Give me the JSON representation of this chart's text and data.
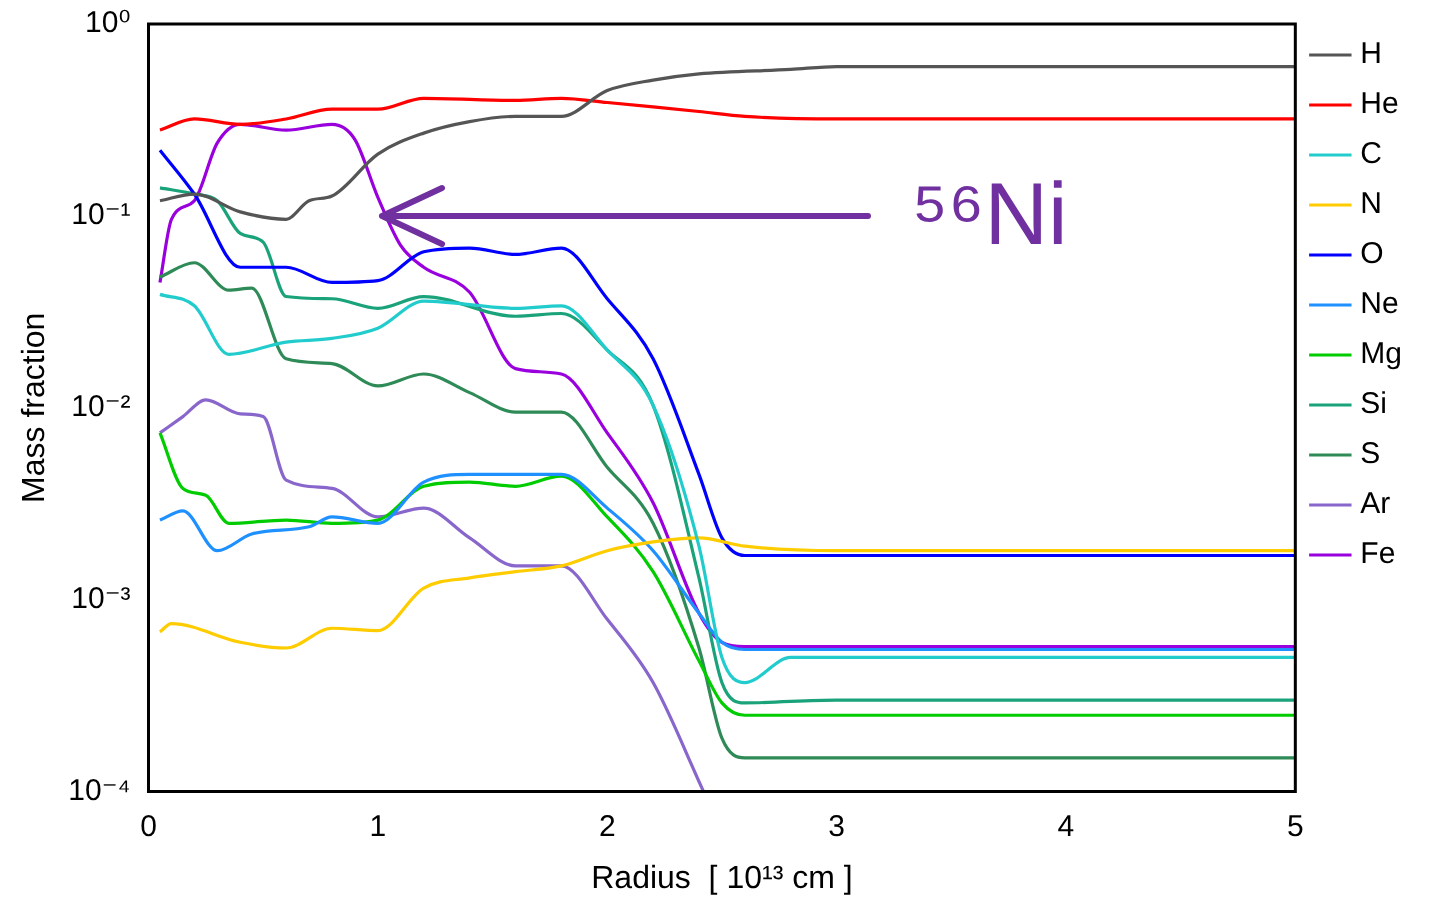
{
  "chart_data": {
    "type": "line",
    "xlabel": "Radius  [ 10¹³ cm ]",
    "ylabel": "Mass fraction",
    "log": "y",
    "legend": "right",
    "grid": false,
    "marker": "none",
    "line_style": "solid",
    "xlim": [
      0,
      5
    ],
    "xticks": [
      0,
      1,
      2,
      3,
      4,
      5
    ],
    "ylim": [
      0.0001,
      1
    ],
    "yticks": [
      {
        "value": 0.0001,
        "label": "10⁻⁴"
      },
      {
        "value": 0.001,
        "label": "10⁻³"
      },
      {
        "value": 0.01,
        "label": "10⁻²"
      },
      {
        "value": 0.1,
        "label": "10⁻¹"
      },
      {
        "value": 1,
        "label": "10⁰"
      }
    ],
    "annotations": [
      {
        "text": "⁵⁶Ni",
        "x": 1.0,
        "y": 0.1
      }
    ],
    "series": [
      {
        "name": "H",
        "color": "#555555",
        "x": [
          0.05,
          0.2,
          0.4,
          0.6,
          0.7,
          0.8,
          1.0,
          1.2,
          1.4,
          1.6,
          1.8,
          2.0,
          2.2,
          2.4,
          2.8,
          3.0,
          5
        ],
        "values": [
          0.12,
          0.13,
          0.105,
          0.096,
          0.12,
          0.127,
          0.21,
          0.27,
          0.31,
          0.33,
          0.33,
          0.45,
          0.51,
          0.55,
          0.58,
          0.6,
          0.6
        ]
      },
      {
        "name": "He",
        "color": "#ff0000",
        "x": [
          0.05,
          0.2,
          0.4,
          0.6,
          0.8,
          1.0,
          1.2,
          1.6,
          1.8,
          2.0,
          2.2,
          2.4,
          2.6,
          3.0,
          5
        ],
        "values": [
          0.28,
          0.32,
          0.3,
          0.32,
          0.36,
          0.36,
          0.41,
          0.4,
          0.41,
          0.39,
          0.37,
          0.35,
          0.33,
          0.32,
          0.32
        ]
      },
      {
        "name": "C",
        "color": "#22cccc",
        "x": [
          0.05,
          0.2,
          0.35,
          0.6,
          0.8,
          1.0,
          1.2,
          1.6,
          1.8,
          2.0,
          2.2,
          2.4,
          2.5,
          2.6,
          2.8,
          3.0,
          5
        ],
        "values": [
          0.039,
          0.034,
          0.019,
          0.022,
          0.023,
          0.026,
          0.036,
          0.033,
          0.034,
          0.02,
          0.0103,
          0.0019,
          0.0005,
          0.00037,
          0.0005,
          0.0005,
          0.0005
        ]
      },
      {
        "name": "N",
        "color": "#ffcc00",
        "x": [
          0.05,
          0.1,
          0.4,
          0.6,
          0.8,
          1.0,
          1.2,
          1.4,
          1.6,
          1.8,
          2.0,
          2.2,
          2.4,
          2.6,
          3.0,
          5
        ],
        "values": [
          0.00068,
          0.00075,
          0.0006,
          0.00056,
          0.00071,
          0.00069,
          0.00115,
          0.0013,
          0.0014,
          0.0015,
          0.0018,
          0.002,
          0.0021,
          0.0019,
          0.0018,
          0.0018
        ]
      },
      {
        "name": "O",
        "color": "#0000ff",
        "x": [
          0.05,
          0.2,
          0.4,
          0.6,
          0.8,
          1.0,
          1.2,
          1.4,
          1.6,
          1.8,
          2.0,
          2.2,
          2.4,
          2.5,
          2.6,
          3.0,
          5
        ],
        "values": [
          0.22,
          0.13,
          0.054,
          0.054,
          0.045,
          0.046,
          0.065,
          0.068,
          0.063,
          0.068,
          0.037,
          0.018,
          0.0045,
          0.0021,
          0.0017,
          0.0017,
          0.0017
        ]
      },
      {
        "name": "Ne",
        "color": "#1e90ff",
        "x": [
          0.05,
          0.15,
          0.3,
          0.45,
          0.7,
          0.8,
          1.0,
          1.2,
          1.4,
          1.8,
          2.0,
          2.2,
          2.4,
          2.5,
          2.6,
          3.0,
          5
        ],
        "values": [
          0.0026,
          0.0029,
          0.0018,
          0.0022,
          0.0024,
          0.0027,
          0.0025,
          0.0041,
          0.0045,
          0.0045,
          0.003,
          0.0018,
          0.00085,
          0.0006,
          0.00055,
          0.00055,
          0.00055
        ]
      },
      {
        "name": "Mg",
        "color": "#00cc00",
        "x": [
          0.05,
          0.15,
          0.25,
          0.35,
          0.6,
          0.8,
          1.0,
          1.2,
          1.4,
          1.6,
          1.8,
          2.0,
          2.2,
          2.4,
          2.5,
          2.6,
          3.0,
          5
        ],
        "values": [
          0.0074,
          0.0038,
          0.0035,
          0.0025,
          0.0026,
          0.0025,
          0.0026,
          0.0039,
          0.0041,
          0.0039,
          0.0044,
          0.0027,
          0.0014,
          0.00048,
          0.00029,
          0.00025,
          0.00025,
          0.00025
        ]
      },
      {
        "name": "Si",
        "color": "#1aa37a",
        "x": [
          0.05,
          0.2,
          0.3,
          0.4,
          0.5,
          0.6,
          0.8,
          1.0,
          1.2,
          1.6,
          1.8,
          2.0,
          2.2,
          2.4,
          2.5,
          2.6,
          3.0,
          5
        ],
        "values": [
          0.14,
          0.13,
          0.12,
          0.081,
          0.073,
          0.038,
          0.037,
          0.033,
          0.038,
          0.03,
          0.031,
          0.02,
          0.0103,
          0.0013,
          0.00037,
          0.00029,
          0.0003,
          0.0003
        ]
      },
      {
        "name": "S",
        "color": "#2e8b57",
        "x": [
          0.05,
          0.2,
          0.35,
          0.45,
          0.6,
          0.8,
          1.0,
          1.2,
          1.4,
          1.6,
          1.8,
          2.0,
          2.2,
          2.4,
          2.5,
          2.6,
          3.0,
          5
        ],
        "values": [
          0.048,
          0.057,
          0.041,
          0.042,
          0.018,
          0.017,
          0.013,
          0.015,
          0.012,
          0.0095,
          0.0095,
          0.0049,
          0.0025,
          0.00056,
          0.00019,
          0.00015,
          0.00015,
          0.00015
        ]
      },
      {
        "name": "Ar",
        "color": "#8866cc",
        "x": [
          0.05,
          0.15,
          0.25,
          0.4,
          0.5,
          0.6,
          0.8,
          1.0,
          1.2,
          1.4,
          1.6,
          1.8,
          2.0,
          2.2,
          2.42
        ],
        "values": [
          0.0074,
          0.009,
          0.011,
          0.0093,
          0.009,
          0.0042,
          0.0038,
          0.0027,
          0.003,
          0.0021,
          0.0015,
          0.0015,
          0.00079,
          0.00037,
          0.0001
        ]
      },
      {
        "name": "Fe",
        "color": "#9900dd",
        "x": [
          0.05,
          0.1,
          0.2,
          0.3,
          0.4,
          0.6,
          0.8,
          0.9,
          1.0,
          1.1,
          1.2,
          1.4,
          1.6,
          1.8,
          2.0,
          2.2,
          2.4,
          2.5,
          2.6,
          3.0,
          5
        ],
        "values": [
          0.045,
          0.096,
          0.12,
          0.24,
          0.3,
          0.28,
          0.3,
          0.25,
          0.125,
          0.07,
          0.054,
          0.04,
          0.016,
          0.015,
          0.0074,
          0.0032,
          0.00085,
          0.0006,
          0.00057,
          0.00057,
          0.00057
        ]
      }
    ]
  }
}
